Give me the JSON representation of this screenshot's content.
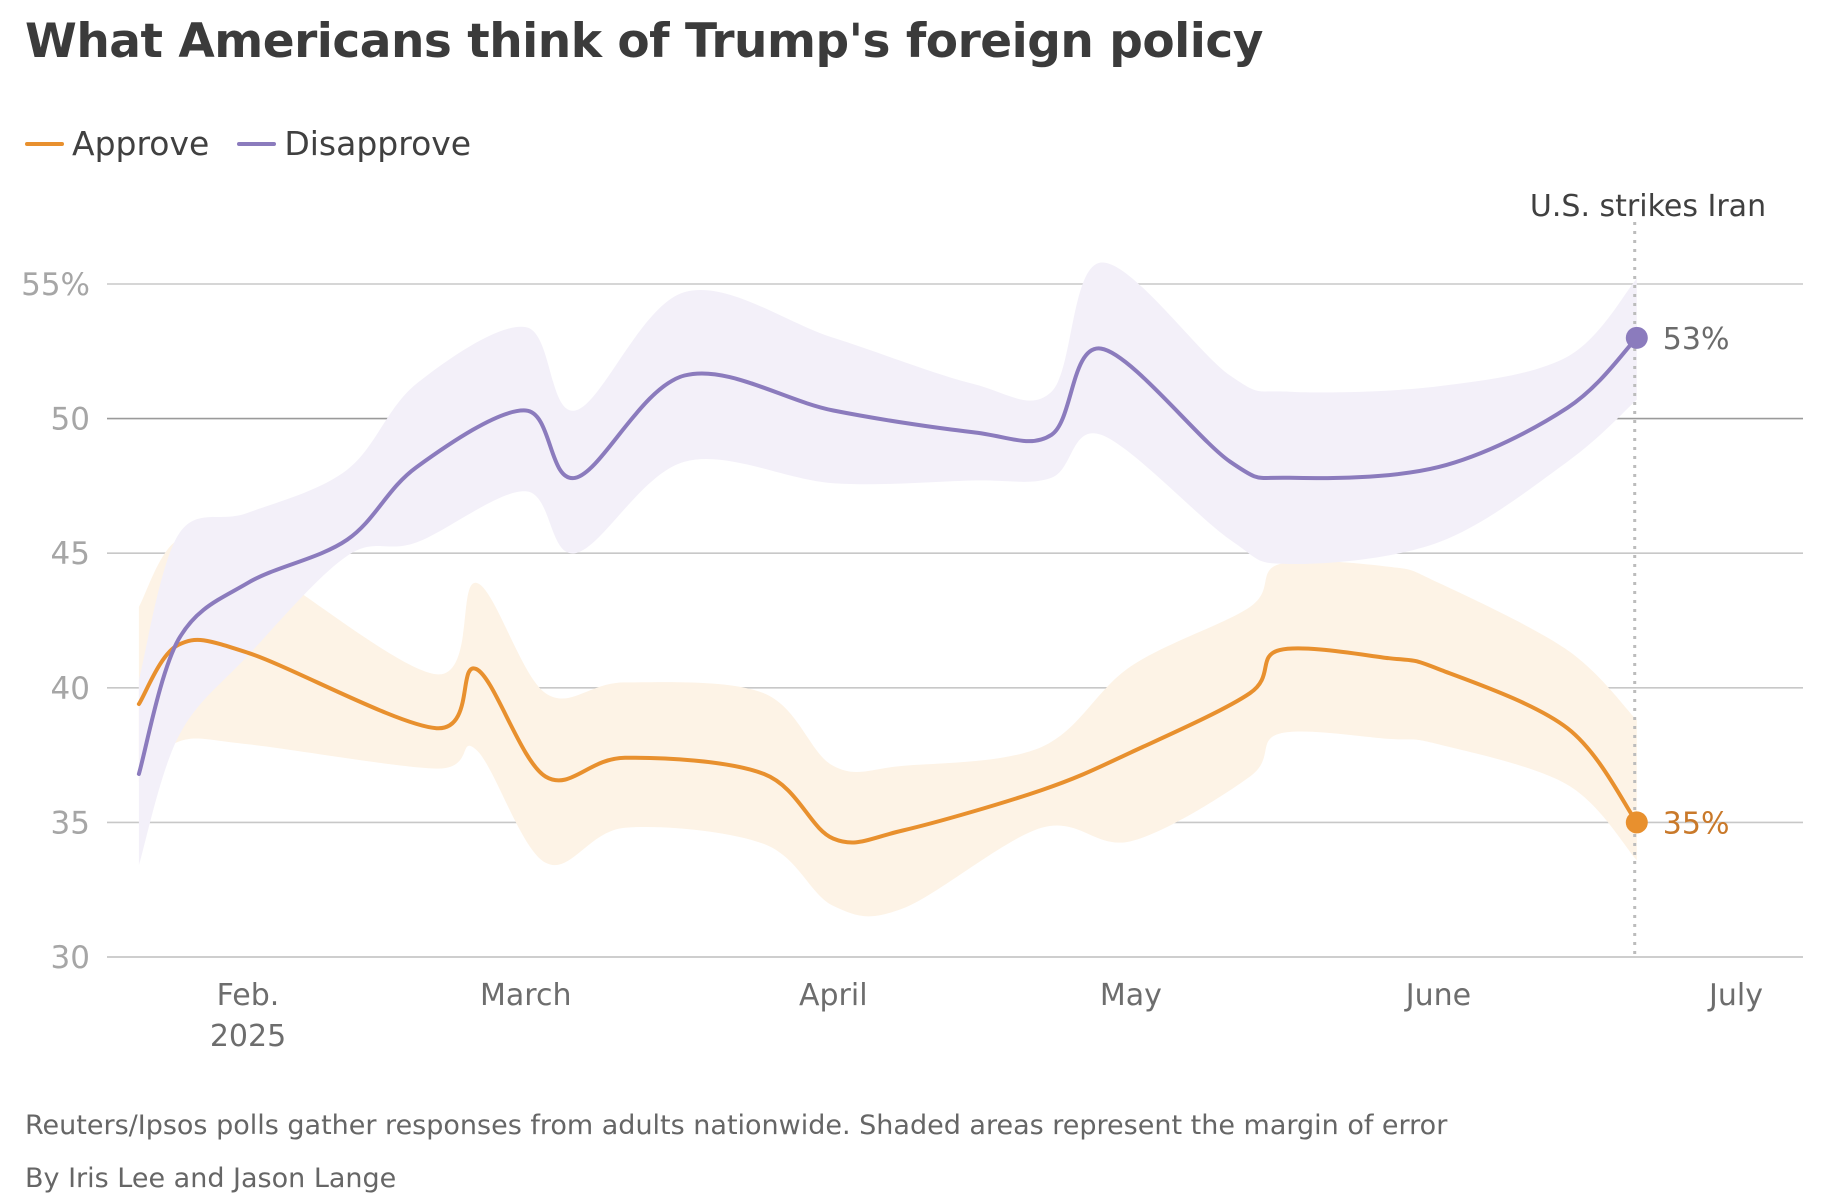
{
  "title": "What Americans think of Trump's foreign policy",
  "legend": [
    {
      "label": "Approve",
      "color": "#e8902e"
    },
    {
      "label": "Disapprove",
      "color": "#8b7bbd"
    }
  ],
  "note": "Reuters/Ipsos polls gather responses from adults nationwide. Shaded areas represent the margin of error",
  "byline": "By Iris Lee and Jason Lange",
  "chart_data": {
    "type": "line",
    "x_axis": {
      "ticks": [
        {
          "label": "Feb.",
          "sublabel": "2025",
          "date": "2025-02-01"
        },
        {
          "label": "March",
          "date": "2025-03-01"
        },
        {
          "label": "April",
          "date": "2025-04-01"
        },
        {
          "label": "May",
          "date": "2025-05-01"
        },
        {
          "label": "June",
          "date": "2025-06-01"
        },
        {
          "label": "July",
          "date": "2025-07-01"
        }
      ],
      "range": [
        "2025-01-20",
        "2025-07-01"
      ]
    },
    "y_axis": {
      "ticks": [
        {
          "value": 30,
          "label": "30"
        },
        {
          "value": 35,
          "label": "35"
        },
        {
          "value": 40,
          "label": "40"
        },
        {
          "value": 45,
          "label": "45"
        },
        {
          "value": 50,
          "label": "50"
        },
        {
          "value": 55,
          "label": "55%"
        }
      ],
      "ylim": [
        30,
        55
      ]
    },
    "grid": true,
    "legend_position": "top-left",
    "annotation": {
      "label": "U.S. strikes Iran",
      "date": "2025-06-22"
    },
    "series": [
      {
        "name": "Approve",
        "color": "#e8902e",
        "band_color": "#fdf3e6",
        "end_label": "35%",
        "points": [
          {
            "date": "2025-01-21",
            "value": 39.4
          },
          {
            "date": "2025-01-25",
            "value": 41.6
          },
          {
            "date": "2025-02-01",
            "value": 41.3
          },
          {
            "date": "2025-02-20",
            "value": 38.5
          },
          {
            "date": "2025-02-24",
            "value": 40.7
          },
          {
            "date": "2025-03-03",
            "value": 36.7
          },
          {
            "date": "2025-03-11",
            "value": 37.4
          },
          {
            "date": "2025-03-25",
            "value": 36.8
          },
          {
            "date": "2025-04-01",
            "value": 34.4
          },
          {
            "date": "2025-04-08",
            "value": 34.7
          },
          {
            "date": "2025-04-22",
            "value": 36.2
          },
          {
            "date": "2025-05-01",
            "value": 37.6
          },
          {
            "date": "2025-05-13",
            "value": 39.8
          },
          {
            "date": "2025-05-16",
            "value": 41.4
          },
          {
            "date": "2025-05-27",
            "value": 41.1
          },
          {
            "date": "2025-06-01",
            "value": 40.7
          },
          {
            "date": "2025-06-14",
            "value": 38.5
          },
          {
            "date": "2025-06-21",
            "value": 35.0
          }
        ],
        "upper": [
          43.0,
          45.5,
          44.8,
          40.5,
          43.9,
          39.8,
          40.2,
          39.8,
          37.1,
          37.1,
          37.8,
          40.8,
          43.0,
          44.6,
          44.5,
          43.9,
          41.4,
          38.8
        ],
        "lower": [
          36.5,
          38.0,
          37.9,
          37.0,
          37.7,
          33.5,
          34.8,
          34.2,
          31.9,
          31.8,
          34.8,
          34.3,
          36.7,
          38.3,
          38.1,
          37.9,
          36.4,
          33.6
        ]
      },
      {
        "name": "Disapprove",
        "color": "#8b7bbd",
        "band_color": "#f3f0f9",
        "end_label": "53%",
        "points": [
          {
            "date": "2025-01-21",
            "value": 36.8
          },
          {
            "date": "2025-01-25",
            "value": 41.8
          },
          {
            "date": "2025-02-01",
            "value": 43.9
          },
          {
            "date": "2025-02-11",
            "value": 45.5
          },
          {
            "date": "2025-02-18",
            "value": 48.2
          },
          {
            "date": "2025-03-01",
            "value": 50.3
          },
          {
            "date": "2025-03-06",
            "value": 47.8
          },
          {
            "date": "2025-03-17",
            "value": 51.6
          },
          {
            "date": "2025-04-01",
            "value": 50.3
          },
          {
            "date": "2025-04-15",
            "value": 49.5
          },
          {
            "date": "2025-04-23",
            "value": 49.4
          },
          {
            "date": "2025-04-28",
            "value": 52.6
          },
          {
            "date": "2025-05-11",
            "value": 48.4
          },
          {
            "date": "2025-05-17",
            "value": 47.8
          },
          {
            "date": "2025-06-01",
            "value": 48.2
          },
          {
            "date": "2025-06-14",
            "value": 50.4
          },
          {
            "date": "2025-06-21",
            "value": 53.0
          }
        ],
        "upper": [
          40.3,
          45.7,
          46.5,
          48.1,
          51.3,
          53.4,
          50.3,
          54.7,
          53.0,
          51.3,
          51.0,
          55.8,
          51.6,
          51.0,
          51.2,
          52.3,
          55.2
        ],
        "lower": [
          33.4,
          38.2,
          41.2,
          44.9,
          45.4,
          47.3,
          45.0,
          48.4,
          47.6,
          47.7,
          47.8,
          49.4,
          45.5,
          44.6,
          45.4,
          48.4,
          50.7
        ]
      }
    ]
  }
}
